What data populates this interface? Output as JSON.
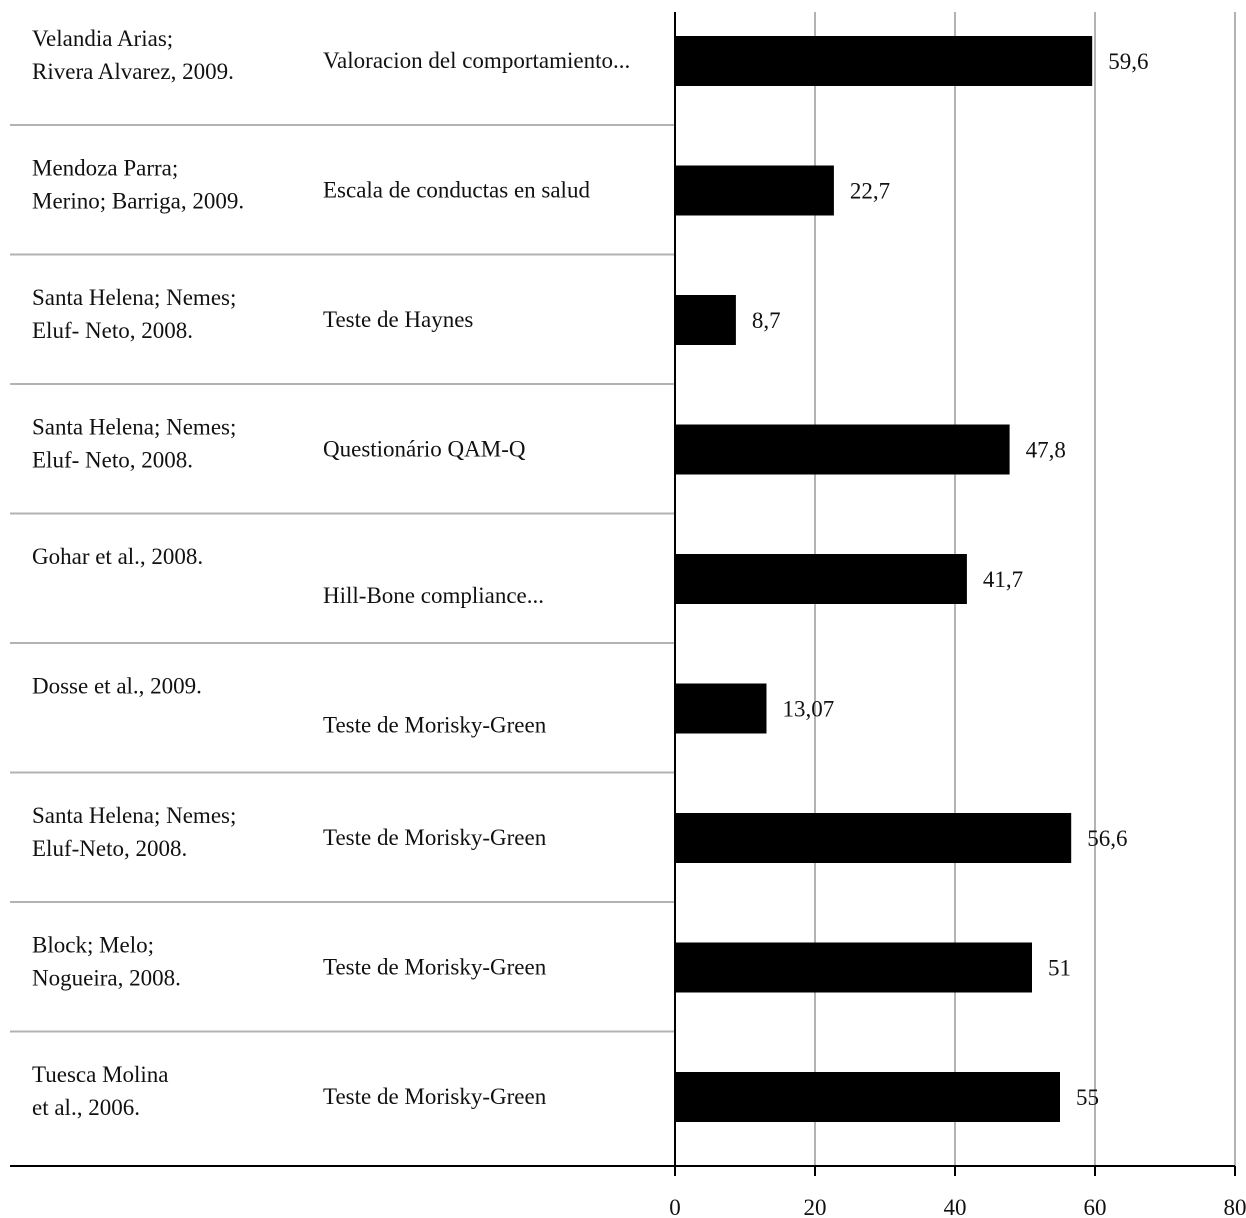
{
  "chart_data": {
    "type": "bar",
    "orientation": "horizontal",
    "title": "",
    "xlabel": "",
    "ylabel": "",
    "xlim": [
      0,
      80
    ],
    "xticks": [
      0,
      20,
      40,
      60,
      80
    ],
    "grid": "vertical",
    "legend": "none",
    "bar_color": "#000000",
    "rows": [
      {
        "author": [
          "Velandia Arias;",
          "Rivera Alvarez, 2009."
        ],
        "instrument": "Valoracion del comportamiento...",
        "value": 59.6,
        "label": "59,6"
      },
      {
        "author": [
          "Mendoza Parra;",
          "Merino; Barriga, 2009."
        ],
        "instrument": "Escala de conductas en salud",
        "value": 22.7,
        "label": "22,7"
      },
      {
        "author": [
          "Santa Helena; Nemes;",
          "Eluf- Neto, 2008."
        ],
        "instrument": "Teste de Haynes",
        "value": 8.7,
        "label": "8,7"
      },
      {
        "author": [
          "Santa Helena; Nemes;",
          "Eluf- Neto, 2008."
        ],
        "instrument": "Questionário QAM-Q",
        "value": 47.8,
        "label": "47,8"
      },
      {
        "author": [
          "Gohar et al., 2008."
        ],
        "instrument": "Hill-Bone compliance...",
        "value": 41.7,
        "label": "41,7"
      },
      {
        "author": [
          "Dosse et al., 2009."
        ],
        "instrument": "Teste de Morisky-Green",
        "value": 13.07,
        "label": "13,07"
      },
      {
        "author": [
          "Santa Helena; Nemes;",
          "Eluf-Neto, 2008."
        ],
        "instrument": "Teste de Morisky-Green",
        "value": 56.6,
        "label": "56,6"
      },
      {
        "author": [
          "Block; Melo;",
          "Nogueira, 2008."
        ],
        "instrument": "Teste de Morisky-Green",
        "value": 51,
        "label": "51"
      },
      {
        "author": [
          "Tuesca Molina",
          "et al., 2006."
        ],
        "instrument": "Teste de Morisky-Green",
        "value": 55,
        "label": "55"
      }
    ]
  }
}
